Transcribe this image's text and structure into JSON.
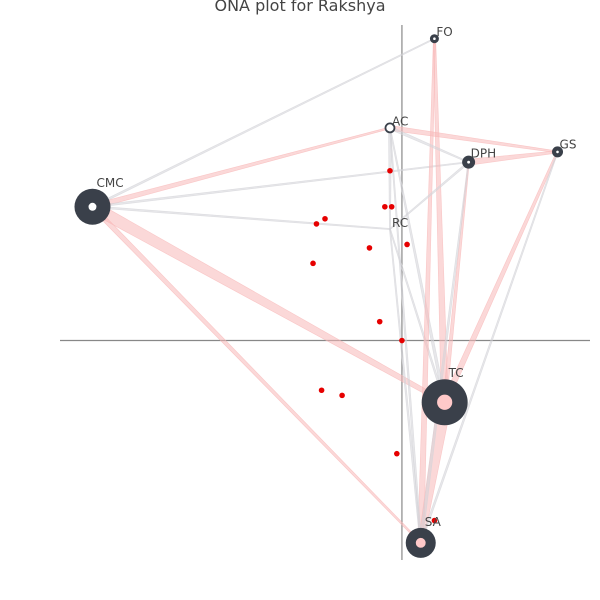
{
  "title": "ONA plot for Rakshya",
  "colors": {
    "node_outer": "#3a404a",
    "node_inner": "#ffc9c9",
    "node_inner_white": "#ffffff",
    "edge_red": "#f8b8b8",
    "edge_grey": "#d4d4d8",
    "dot": "#e60000",
    "axis": "#888888"
  },
  "chart_data": {
    "type": "network",
    "title": "ONA plot for Rakshya",
    "axis_origin": [
      0,
      0
    ],
    "xlim": [
      -1.0,
      0.55
    ],
    "ylim": [
      -0.64,
      0.92
    ],
    "nodes": [
      {
        "id": "FO",
        "label": "FO",
        "x": 0.095,
        "y": 0.88,
        "size": 4.5,
        "inner": "white"
      },
      {
        "id": "AC",
        "label": "AC",
        "x": -0.035,
        "y": 0.62,
        "size": 4.5,
        "inner": "white",
        "hollow": true
      },
      {
        "id": "DPH",
        "label": "DPH",
        "x": 0.195,
        "y": 0.52,
        "size": 6.5,
        "inner": "white"
      },
      {
        "id": "GS",
        "label": "GS",
        "x": 0.455,
        "y": 0.55,
        "size": 5.5,
        "inner": "white"
      },
      {
        "id": "CMC",
        "label": "CMC",
        "x": -0.905,
        "y": 0.39,
        "size": 18,
        "inner": "white"
      },
      {
        "id": "RC",
        "label": "RC",
        "x": -0.035,
        "y": 0.325,
        "size": 0,
        "inner": "none"
      },
      {
        "id": "TC",
        "label": "TC",
        "x": 0.125,
        "y": -0.18,
        "size": 23,
        "inner": "pink"
      },
      {
        "id": "SA",
        "label": "SA",
        "x": 0.055,
        "y": -0.59,
        "size": 15,
        "inner": "pink"
      }
    ],
    "edges": [
      {
        "from": "CMC",
        "to": "TC",
        "weight": 6,
        "color": "red"
      },
      {
        "from": "CMC",
        "to": "SA",
        "weight": 2.5,
        "color": "red"
      },
      {
        "from": "CMC",
        "to": "AC",
        "weight": 2.5,
        "color": "red"
      },
      {
        "from": "CMC",
        "to": "FO",
        "weight": 1,
        "color": "grey"
      },
      {
        "from": "CMC",
        "to": "DPH",
        "weight": 1,
        "color": "grey"
      },
      {
        "from": "TC",
        "to": "SA",
        "weight": 7,
        "color": "red"
      },
      {
        "from": "TC",
        "to": "FO",
        "weight": 3.5,
        "color": "red"
      },
      {
        "from": "TC",
        "to": "GS",
        "weight": 3,
        "color": "red"
      },
      {
        "from": "TC",
        "to": "DPH",
        "weight": 2,
        "color": "red"
      },
      {
        "from": "TC",
        "to": "AC",
        "weight": 1.5,
        "color": "grey"
      },
      {
        "from": "TC",
        "to": "RC",
        "weight": 1,
        "color": "grey"
      },
      {
        "from": "SA",
        "to": "FO",
        "weight": 3,
        "color": "red"
      },
      {
        "from": "SA",
        "to": "DPH",
        "weight": 1.5,
        "color": "grey"
      },
      {
        "from": "SA",
        "to": "GS",
        "weight": 1,
        "color": "grey"
      },
      {
        "from": "SA",
        "to": "AC",
        "weight": 1,
        "color": "grey"
      },
      {
        "from": "SA",
        "to": "RC",
        "weight": 1,
        "color": "grey"
      },
      {
        "from": "AC",
        "to": "GS",
        "weight": 2.5,
        "color": "red"
      },
      {
        "from": "AC",
        "to": "DPH",
        "weight": 1.5,
        "color": "grey"
      },
      {
        "from": "AC",
        "to": "RC",
        "weight": 1.5,
        "color": "grey"
      },
      {
        "from": "DPH",
        "to": "GS",
        "weight": 3,
        "color": "red"
      },
      {
        "from": "DPH",
        "to": "RC",
        "weight": 1,
        "color": "grey"
      },
      {
        "from": "CMC",
        "to": "RC",
        "weight": 1,
        "color": "grey"
      }
    ],
    "points": [
      {
        "x": -0.225,
        "y": 0.355
      },
      {
        "x": -0.25,
        "y": 0.34
      },
      {
        "x": -0.05,
        "y": 0.39
      },
      {
        "x": -0.03,
        "y": 0.39
      },
      {
        "x": -0.035,
        "y": 0.495
      },
      {
        "x": -0.095,
        "y": 0.27
      },
      {
        "x": 0.015,
        "y": 0.28
      },
      {
        "x": -0.26,
        "y": 0.225
      },
      {
        "x": -0.065,
        "y": 0.055
      },
      {
        "x": 0.0,
        "y": 0.0
      },
      {
        "x": -0.235,
        "y": -0.145
      },
      {
        "x": -0.175,
        "y": -0.16
      },
      {
        "x": -0.015,
        "y": -0.33
      },
      {
        "x": 0.095,
        "y": -0.525
      },
      {
        "x": 0.045,
        "y": -0.565
      }
    ]
  }
}
